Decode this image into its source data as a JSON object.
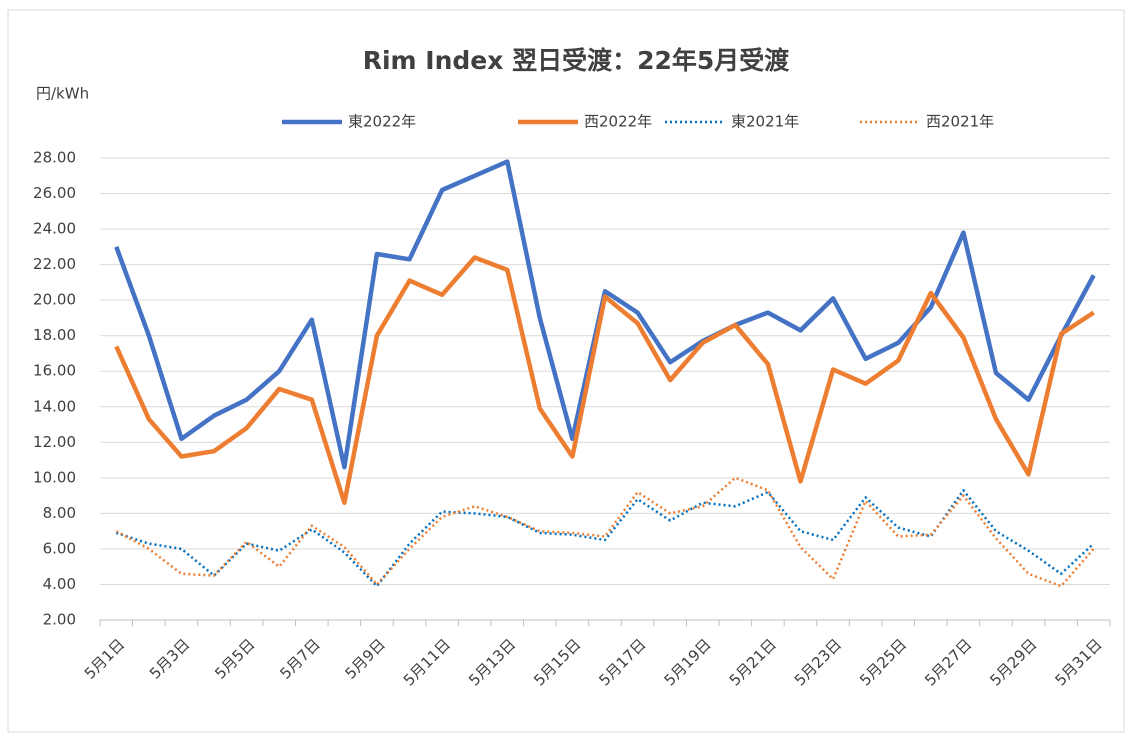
{
  "chart_data": {
    "type": "line",
    "title": "Rim Index 翌日受渡：22年5月受渡",
    "y_label": "円/kWh",
    "categories": [
      "5月1日",
      null,
      "5月3日",
      null,
      "5月5日",
      null,
      "5月7日",
      null,
      "5月9日",
      null,
      "5月11日",
      null,
      "5月13日",
      null,
      "5月15日",
      null,
      "5月17日",
      null,
      "5月19日",
      null,
      "5月21日",
      null,
      "5月23日",
      null,
      "5月25日",
      null,
      "5月27日",
      null,
      "5月29日",
      null,
      "5月31日"
    ],
    "series": [
      {
        "name": "東2022年",
        "color": "#4472c4",
        "style": "solid",
        "values": [
          23.0,
          18.0,
          12.2,
          13.5,
          14.4,
          16.0,
          18.9,
          10.6,
          22.6,
          22.3,
          26.2,
          27.0,
          27.8,
          19.0,
          12.2,
          20.5,
          19.3,
          16.5,
          17.7,
          18.6,
          19.3,
          18.3,
          20.1,
          16.7,
          17.6,
          19.6,
          23.8,
          15.9,
          14.4,
          18.0,
          21.4
        ]
      },
      {
        "name": "西2022年",
        "color": "#ed7d31",
        "style": "solid",
        "values": [
          17.4,
          13.3,
          11.2,
          11.5,
          12.8,
          15.0,
          14.4,
          8.6,
          18.0,
          21.1,
          20.3,
          22.4,
          21.7,
          13.9,
          11.2,
          20.2,
          18.7,
          15.5,
          17.6,
          18.6,
          16.4,
          9.8,
          16.1,
          15.3,
          16.6,
          20.4,
          17.9,
          13.3,
          10.2,
          18.1,
          19.3
        ]
      },
      {
        "name": "東2021年",
        "color": "#0070c0",
        "style": "dotted",
        "values": [
          6.9,
          6.3,
          6.0,
          4.5,
          6.3,
          5.9,
          7.1,
          5.8,
          3.9,
          6.3,
          8.1,
          8.0,
          7.8,
          6.9,
          6.8,
          6.5,
          8.8,
          7.6,
          8.6,
          8.4,
          9.2,
          7.0,
          6.5,
          8.9,
          7.2,
          6.7,
          9.3,
          7.0,
          5.9,
          4.6,
          6.3
        ]
      },
      {
        "name": "西2021年",
        "color": "#ed7d31",
        "style": "dotted",
        "values": [
          7.0,
          6.0,
          4.6,
          4.5,
          6.4,
          5.0,
          7.3,
          6.1,
          4.0,
          6.0,
          7.8,
          8.4,
          7.8,
          7.0,
          6.9,
          6.7,
          9.2,
          8.0,
          8.4,
          10.0,
          9.3,
          6.1,
          4.3,
          8.7,
          6.7,
          6.8,
          9.0,
          6.6,
          4.6,
          3.9,
          6.0
        ]
      }
    ],
    "ylim": [
      2,
      28
    ],
    "yticks": [
      {
        "value": 2,
        "label": "2.00"
      },
      {
        "value": 4,
        "label": "4.00"
      },
      {
        "value": 6,
        "label": "6.00"
      },
      {
        "value": 8,
        "label": "8.00"
      },
      {
        "value": 10,
        "label": "10.00"
      },
      {
        "value": 12,
        "label": "12.00"
      },
      {
        "value": 14,
        "label": "14.00"
      },
      {
        "value": 16,
        "label": "16.00"
      },
      {
        "value": 18,
        "label": "18.00"
      },
      {
        "value": 20,
        "label": "20.00"
      },
      {
        "value": 22,
        "label": "22.00"
      },
      {
        "value": 24,
        "label": "24.00"
      },
      {
        "value": 26,
        "label": "26.00"
      },
      {
        "value": 28,
        "label": "28.00"
      }
    ],
    "grid": true,
    "legend": "top"
  }
}
